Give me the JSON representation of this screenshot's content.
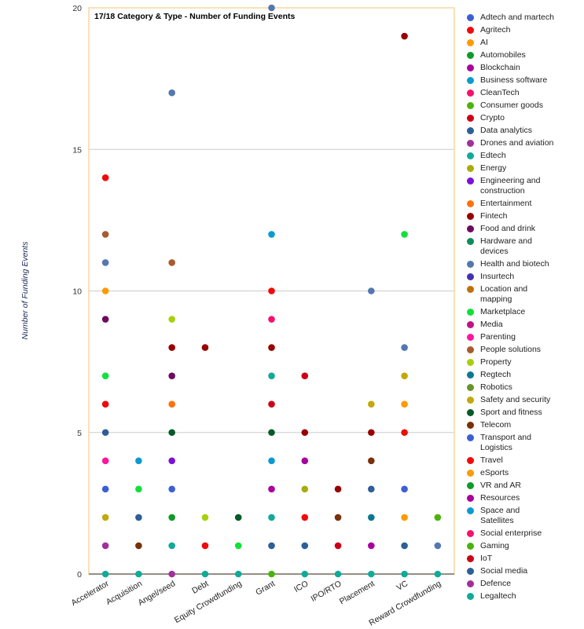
{
  "chart_data": {
    "type": "scatter",
    "title": "17/18 Category & Type - Number of Funding Events",
    "xlabel": "",
    "ylabel": "Number of Funding Events",
    "ylim": [
      0,
      20
    ],
    "yticks": [
      0,
      5,
      10,
      15,
      20
    ],
    "grid": true,
    "legend_position": "right",
    "categories": [
      "Accelerator",
      "Acquisition",
      "Angel/seed",
      "Debt",
      "Equity Crowdfunding",
      "Grant",
      "ICO",
      "IPO/RTO",
      "Placement",
      "VC",
      "Reward Crowdfunding"
    ],
    "series": [
      {
        "name": "Adtech and martech",
        "color": "#3c5fd6",
        "points": []
      },
      {
        "name": "Agritech",
        "color": "#f00a0a",
        "points": [
          [
            "Accelerator",
            14
          ],
          [
            "Debt",
            1
          ]
        ]
      },
      {
        "name": "AI",
        "color": "#ff9a00",
        "points": [
          [
            "Accelerator",
            10
          ],
          [
            "VC",
            6
          ]
        ]
      },
      {
        "name": "Automobiles",
        "color": "#0f9a2a",
        "points": []
      },
      {
        "name": "Blockchain",
        "color": "#a8009e",
        "points": [
          [
            "ICO",
            4
          ]
        ]
      },
      {
        "name": "Business software",
        "color": "#0b9bd0",
        "points": [
          [
            "Grant",
            12
          ]
        ]
      },
      {
        "name": "CleanTech",
        "color": "#f5126c",
        "points": [
          [
            "Grant",
            9
          ]
        ]
      },
      {
        "name": "Consumer goods",
        "color": "#4bb30d",
        "points": []
      },
      {
        "name": "Crypto",
        "color": "#cc0019",
        "points": [
          [
            "Grant",
            6
          ],
          [
            "ICO",
            7
          ]
        ]
      },
      {
        "name": "Data analytics",
        "color": "#2d5f98",
        "points": [
          [
            "Accelerator",
            5
          ],
          [
            "Acquisition",
            2
          ],
          [
            "Placement",
            3
          ]
        ]
      },
      {
        "name": "Drones and aviation",
        "color": "#a0309a",
        "points": [
          [
            "Accelerator",
            1
          ]
        ]
      },
      {
        "name": "Edtech",
        "color": "#11aa99",
        "points": [
          [
            "Grant",
            7
          ]
        ]
      },
      {
        "name": "Energy",
        "color": "#a9ac0c",
        "points": [
          [
            "ICO",
            3
          ]
        ]
      },
      {
        "name": "Engineering and construction",
        "color": "#7a12d8",
        "points": [
          [
            "Angel/seed",
            4
          ]
        ]
      },
      {
        "name": "Entertainment",
        "color": "#ff7109",
        "points": [
          [
            "Angel/seed",
            6
          ]
        ]
      },
      {
        "name": "Fintech",
        "color": "#990000",
        "points": [
          [
            "Angel/seed",
            8
          ],
          [
            "Debt",
            8
          ],
          [
            "Grant",
            8
          ],
          [
            "ICO",
            5
          ],
          [
            "IPO/RTO",
            3
          ],
          [
            "Placement",
            5
          ],
          [
            "VC",
            19
          ]
        ]
      },
      {
        "name": "Food and drink",
        "color": "#6c0a60",
        "points": [
          [
            "Accelerator",
            9
          ],
          [
            "Angel/seed",
            7
          ]
        ]
      },
      {
        "name": "Hardware and devices",
        "color": "#0c8c5c",
        "points": []
      },
      {
        "name": "Health and biotech",
        "color": "#5577b0",
        "points": [
          [
            "Accelerator",
            11
          ],
          [
            "Angel/seed",
            17
          ],
          [
            "Grant",
            20
          ],
          [
            "Placement",
            10
          ],
          [
            "VC",
            8
          ],
          [
            "Reward Crowdfunding",
            1
          ]
        ]
      },
      {
        "name": "Insurtech",
        "color": "#4232b0",
        "points": []
      },
      {
        "name": "Location and mapping",
        "color": "#c0700a",
        "points": []
      },
      {
        "name": "Marketplace",
        "color": "#11e03a",
        "points": [
          [
            "Accelerator",
            7
          ],
          [
            "Acquisition",
            3
          ],
          [
            "Equity Crowdfunding",
            1
          ],
          [
            "VC",
            12
          ]
        ]
      },
      {
        "name": "Media",
        "color": "#c0108a",
        "points": []
      },
      {
        "name": "Parenting",
        "color": "#ff16a0",
        "points": [
          [
            "Accelerator",
            4
          ]
        ]
      },
      {
        "name": "People solutions",
        "color": "#a85a30",
        "points": [
          [
            "Accelerator",
            12
          ],
          [
            "Angel/seed",
            11
          ]
        ]
      },
      {
        "name": "Property",
        "color": "#a6d00c",
        "points": [
          [
            "Angel/seed",
            9
          ],
          [
            "Debt",
            2
          ]
        ]
      },
      {
        "name": "Regtech",
        "color": "#0b7890",
        "points": [
          [
            "Placement",
            2
          ]
        ]
      },
      {
        "name": "Robotics",
        "color": "#68922a",
        "points": []
      },
      {
        "name": "Safety and security",
        "color": "#c2a80a",
        "points": [
          [
            "Accelerator",
            2
          ],
          [
            "Placement",
            6
          ],
          [
            "VC",
            7
          ]
        ]
      },
      {
        "name": "Sport and fitness",
        "color": "#055a28",
        "points": [
          [
            "Angel/seed",
            5
          ],
          [
            "Equity Crowdfunding",
            2
          ],
          [
            "Grant",
            5
          ]
        ]
      },
      {
        "name": "Telecom",
        "color": "#7a3008",
        "points": [
          [
            "Acquisition",
            1
          ],
          [
            "IPO/RTO",
            2
          ],
          [
            "Placement",
            4
          ]
        ]
      },
      {
        "name": "Transport and Logistics",
        "color": "#3c5fd6",
        "points": [
          [
            "Accelerator",
            3
          ],
          [
            "Angel/seed",
            3
          ],
          [
            "VC",
            3
          ]
        ]
      },
      {
        "name": "Travel",
        "color": "#f00a0a",
        "points": [
          [
            "Accelerator",
            6
          ],
          [
            "Grant",
            10
          ],
          [
            "ICO",
            2
          ],
          [
            "VC",
            5
          ]
        ]
      },
      {
        "name": "eSports",
        "color": "#ff9a00",
        "points": [
          [
            "VC",
            2
          ]
        ]
      },
      {
        "name": "VR and AR",
        "color": "#0f9a2a",
        "points": [
          [
            "Angel/seed",
            2
          ]
        ]
      },
      {
        "name": "Resources",
        "color": "#a8009e",
        "points": [
          [
            "Grant",
            3
          ],
          [
            "Placement",
            1
          ]
        ]
      },
      {
        "name": "Space and Satellites",
        "color": "#0b9bd0",
        "points": [
          [
            "Acquisition",
            4
          ],
          [
            "Grant",
            4
          ]
        ]
      },
      {
        "name": "Social enterprise",
        "color": "#f5126c",
        "points": []
      },
      {
        "name": "Gaming",
        "color": "#4bb30d",
        "points": [
          [
            "Grant",
            0
          ],
          [
            "Reward Crowdfunding",
            2
          ]
        ]
      },
      {
        "name": "IoT",
        "color": "#cc0019",
        "points": [
          [
            "IPO/RTO",
            1
          ]
        ]
      },
      {
        "name": "Social media",
        "color": "#2d5f98",
        "points": [
          [
            "Grant",
            1
          ],
          [
            "ICO",
            1
          ],
          [
            "VC",
            1
          ]
        ]
      },
      {
        "name": "Defence",
        "color": "#a0309a",
        "points": [
          [
            "Angel/seed",
            0
          ]
        ]
      },
      {
        "name": "Legaltech",
        "color": "#11aa99",
        "points": [
          [
            "Accelerator",
            0
          ],
          [
            "Acquisition",
            0
          ],
          [
            "Angel/seed",
            1
          ],
          [
            "Debt",
            0
          ],
          [
            "Equity Crowdfunding",
            0
          ],
          [
            "Grant",
            2
          ],
          [
            "ICO",
            0
          ],
          [
            "IPO/RTO",
            0
          ],
          [
            "Placement",
            0
          ],
          [
            "VC",
            0
          ],
          [
            "Reward Crowdfunding",
            0
          ]
        ]
      }
    ]
  }
}
